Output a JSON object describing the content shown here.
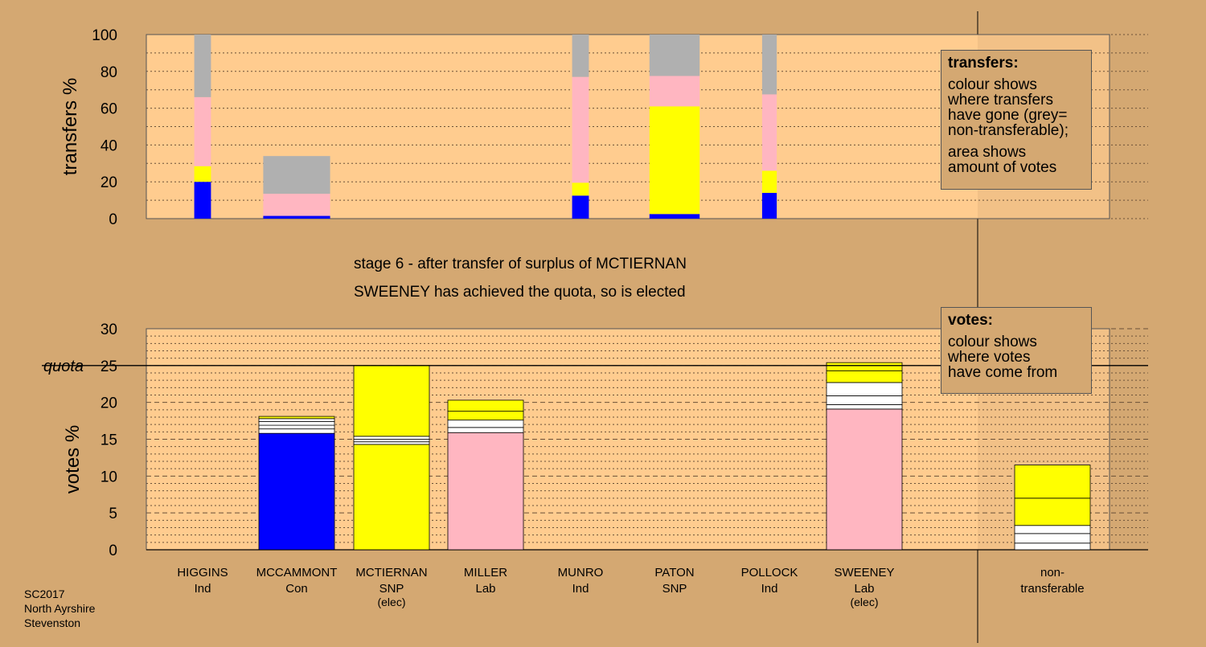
{
  "chart_data": [
    {
      "type": "bar",
      "stacked": true,
      "ylabel": "transfers %",
      "ylim": [
        0,
        100
      ],
      "yticks": [
        0,
        20,
        40,
        60,
        80,
        100
      ],
      "grid": true,
      "categories": [
        "HIGGINS",
        "MCCAMMONT",
        "MCTIERNAN",
        "MILLER",
        "MUNRO",
        "PATON",
        "POLLOCK",
        "SWEENEY",
        "non-transferable"
      ],
      "bars": [
        {
          "category": "HIGGINS",
          "width_votes": 0.4,
          "segments": [
            {
              "color": "#0000ff",
              "value": 20
            },
            {
              "color": "#ffff00",
              "value": 8.5
            },
            {
              "color": "#ffb6c1",
              "value": 37.5
            },
            {
              "color": "#b0b0b0",
              "value": 34
            }
          ]
        },
        {
          "category": "MCCAMMONT",
          "width_votes": 1.6,
          "segments": [
            {
              "color": "#0000ff",
              "value": 1.5
            },
            {
              "color": "#ffb6c1",
              "value": 12
            },
            {
              "color": "#b0b0b0",
              "value": 20.5
            }
          ]
        },
        {
          "category": "MUNRO",
          "width_votes": 0.4,
          "segments": [
            {
              "color": "#0000ff",
              "value": 12.5
            },
            {
              "color": "#ffff00",
              "value": 7
            },
            {
              "color": "#ffb6c1",
              "value": 57.5
            },
            {
              "color": "#b0b0b0",
              "value": 23
            }
          ]
        },
        {
          "category": "PATON",
          "width_votes": 1.2,
          "segments": [
            {
              "color": "#0000ff",
              "value": 2.5
            },
            {
              "color": "#ffff00",
              "value": 58.5
            },
            {
              "color": "#ffb6c1",
              "value": 16.5
            },
            {
              "color": "#b0b0b0",
              "value": 22.5
            }
          ]
        },
        {
          "category": "POLLOCK",
          "width_votes": 0.35,
          "segments": [
            {
              "color": "#0000ff",
              "value": 14
            },
            {
              "color": "#ffff00",
              "value": 12
            },
            {
              "color": "#ffb6c1",
              "value": 41.5
            },
            {
              "color": "#b0b0b0",
              "value": 32.5
            }
          ]
        }
      ]
    },
    {
      "type": "bar",
      "stacked": true,
      "ylabel": "votes %",
      "ylim": [
        0,
        30
      ],
      "yticks": [
        0,
        5,
        10,
        15,
        20,
        25,
        30
      ],
      "grid": true,
      "quota": 25,
      "quota_label": "quota",
      "candidates": [
        {
          "name": "HIGGINS",
          "party": "Ind",
          "status": "",
          "segments": []
        },
        {
          "name": "MCCAMMONT",
          "party": "Con",
          "status": "",
          "segments": [
            {
              "color": "#0000ff",
              "value": 15.8
            },
            {
              "color": "#ffffff",
              "value": 0.6
            },
            {
              "color": "#ffffff",
              "value": 0.5
            },
            {
              "color": "#ffffff",
              "value": 0.5
            },
            {
              "color": "#ffffff",
              "value": 0.4
            },
            {
              "color": "#ffff00",
              "value": 0.3
            }
          ]
        },
        {
          "name": "MCTIERNAN",
          "party": "SNP",
          "status": "(elec)",
          "segments": [
            {
              "color": "#ffff00",
              "value": 14.3
            },
            {
              "color": "#ffffff",
              "value": 0.35
            },
            {
              "color": "#ffffff",
              "value": 0.35
            },
            {
              "color": "#ffffff",
              "value": 0.4
            },
            {
              "color": "#ffff00",
              "value": 9.6
            }
          ]
        },
        {
          "name": "MILLER",
          "party": "Lab",
          "status": "",
          "segments": [
            {
              "color": "#ffb6c1",
              "value": 15.9
            },
            {
              "color": "#ffffff",
              "value": 0.7
            },
            {
              "color": "#ffffff",
              "value": 1.0
            },
            {
              "color": "#ffff00",
              "value": 1.2
            },
            {
              "color": "#ffff00",
              "value": 1.5
            }
          ]
        },
        {
          "name": "MUNRO",
          "party": "Ind",
          "status": "",
          "segments": []
        },
        {
          "name": "PATON",
          "party": "SNP",
          "status": "",
          "segments": []
        },
        {
          "name": "POLLOCK",
          "party": "Ind",
          "status": "",
          "segments": []
        },
        {
          "name": "SWEENEY",
          "party": "Lab",
          "status": "(elec)",
          "segments": [
            {
              "color": "#ffb6c1",
              "value": 19.1
            },
            {
              "color": "#ffffff",
              "value": 0.6
            },
            {
              "color": "#ffffff",
              "value": 1.2
            },
            {
              "color": "#ffffff",
              "value": 1.8
            },
            {
              "color": "#ffff00",
              "value": 1.6
            },
            {
              "color": "#ffff00",
              "value": 1.1
            }
          ]
        },
        {
          "name": "non-",
          "party": "transferable",
          "status": "",
          "segments": [
            {
              "color": "#ffffff",
              "value": 0.9
            },
            {
              "color": "#ffffff",
              "value": 1.3
            },
            {
              "color": "#ffffff",
              "value": 1.1
            },
            {
              "color": "#ffff00",
              "value": 3.7
            },
            {
              "color": "#ffff00",
              "value": 4.5
            }
          ]
        }
      ]
    }
  ],
  "captions": {
    "stage": "stage 6 - after transfer of surplus of MCTIERNAN",
    "result": "SWEENEY has achieved the quota, so is elected"
  },
  "legend_transfers": {
    "title": "transfers:",
    "line1": "colour shows",
    "line2": "where transfers",
    "line3": "have gone (grey=",
    "line4": "non-transferable);",
    "line5": "area shows",
    "line6": "amount of votes"
  },
  "legend_votes": {
    "title": "votes:",
    "line1": "colour shows",
    "line2": "where votes",
    "line3": "have come from"
  },
  "footer": {
    "line1": "SC2017",
    "line2": "North Ayrshire",
    "line3": "Stevenston"
  },
  "colors": {
    "background": "#d4a872",
    "plot_area": "#ffcc8f",
    "con": "#0000ff",
    "snp": "#ffff00",
    "lab": "#ffb6c1",
    "non_transferable": "#b0b0b0"
  }
}
